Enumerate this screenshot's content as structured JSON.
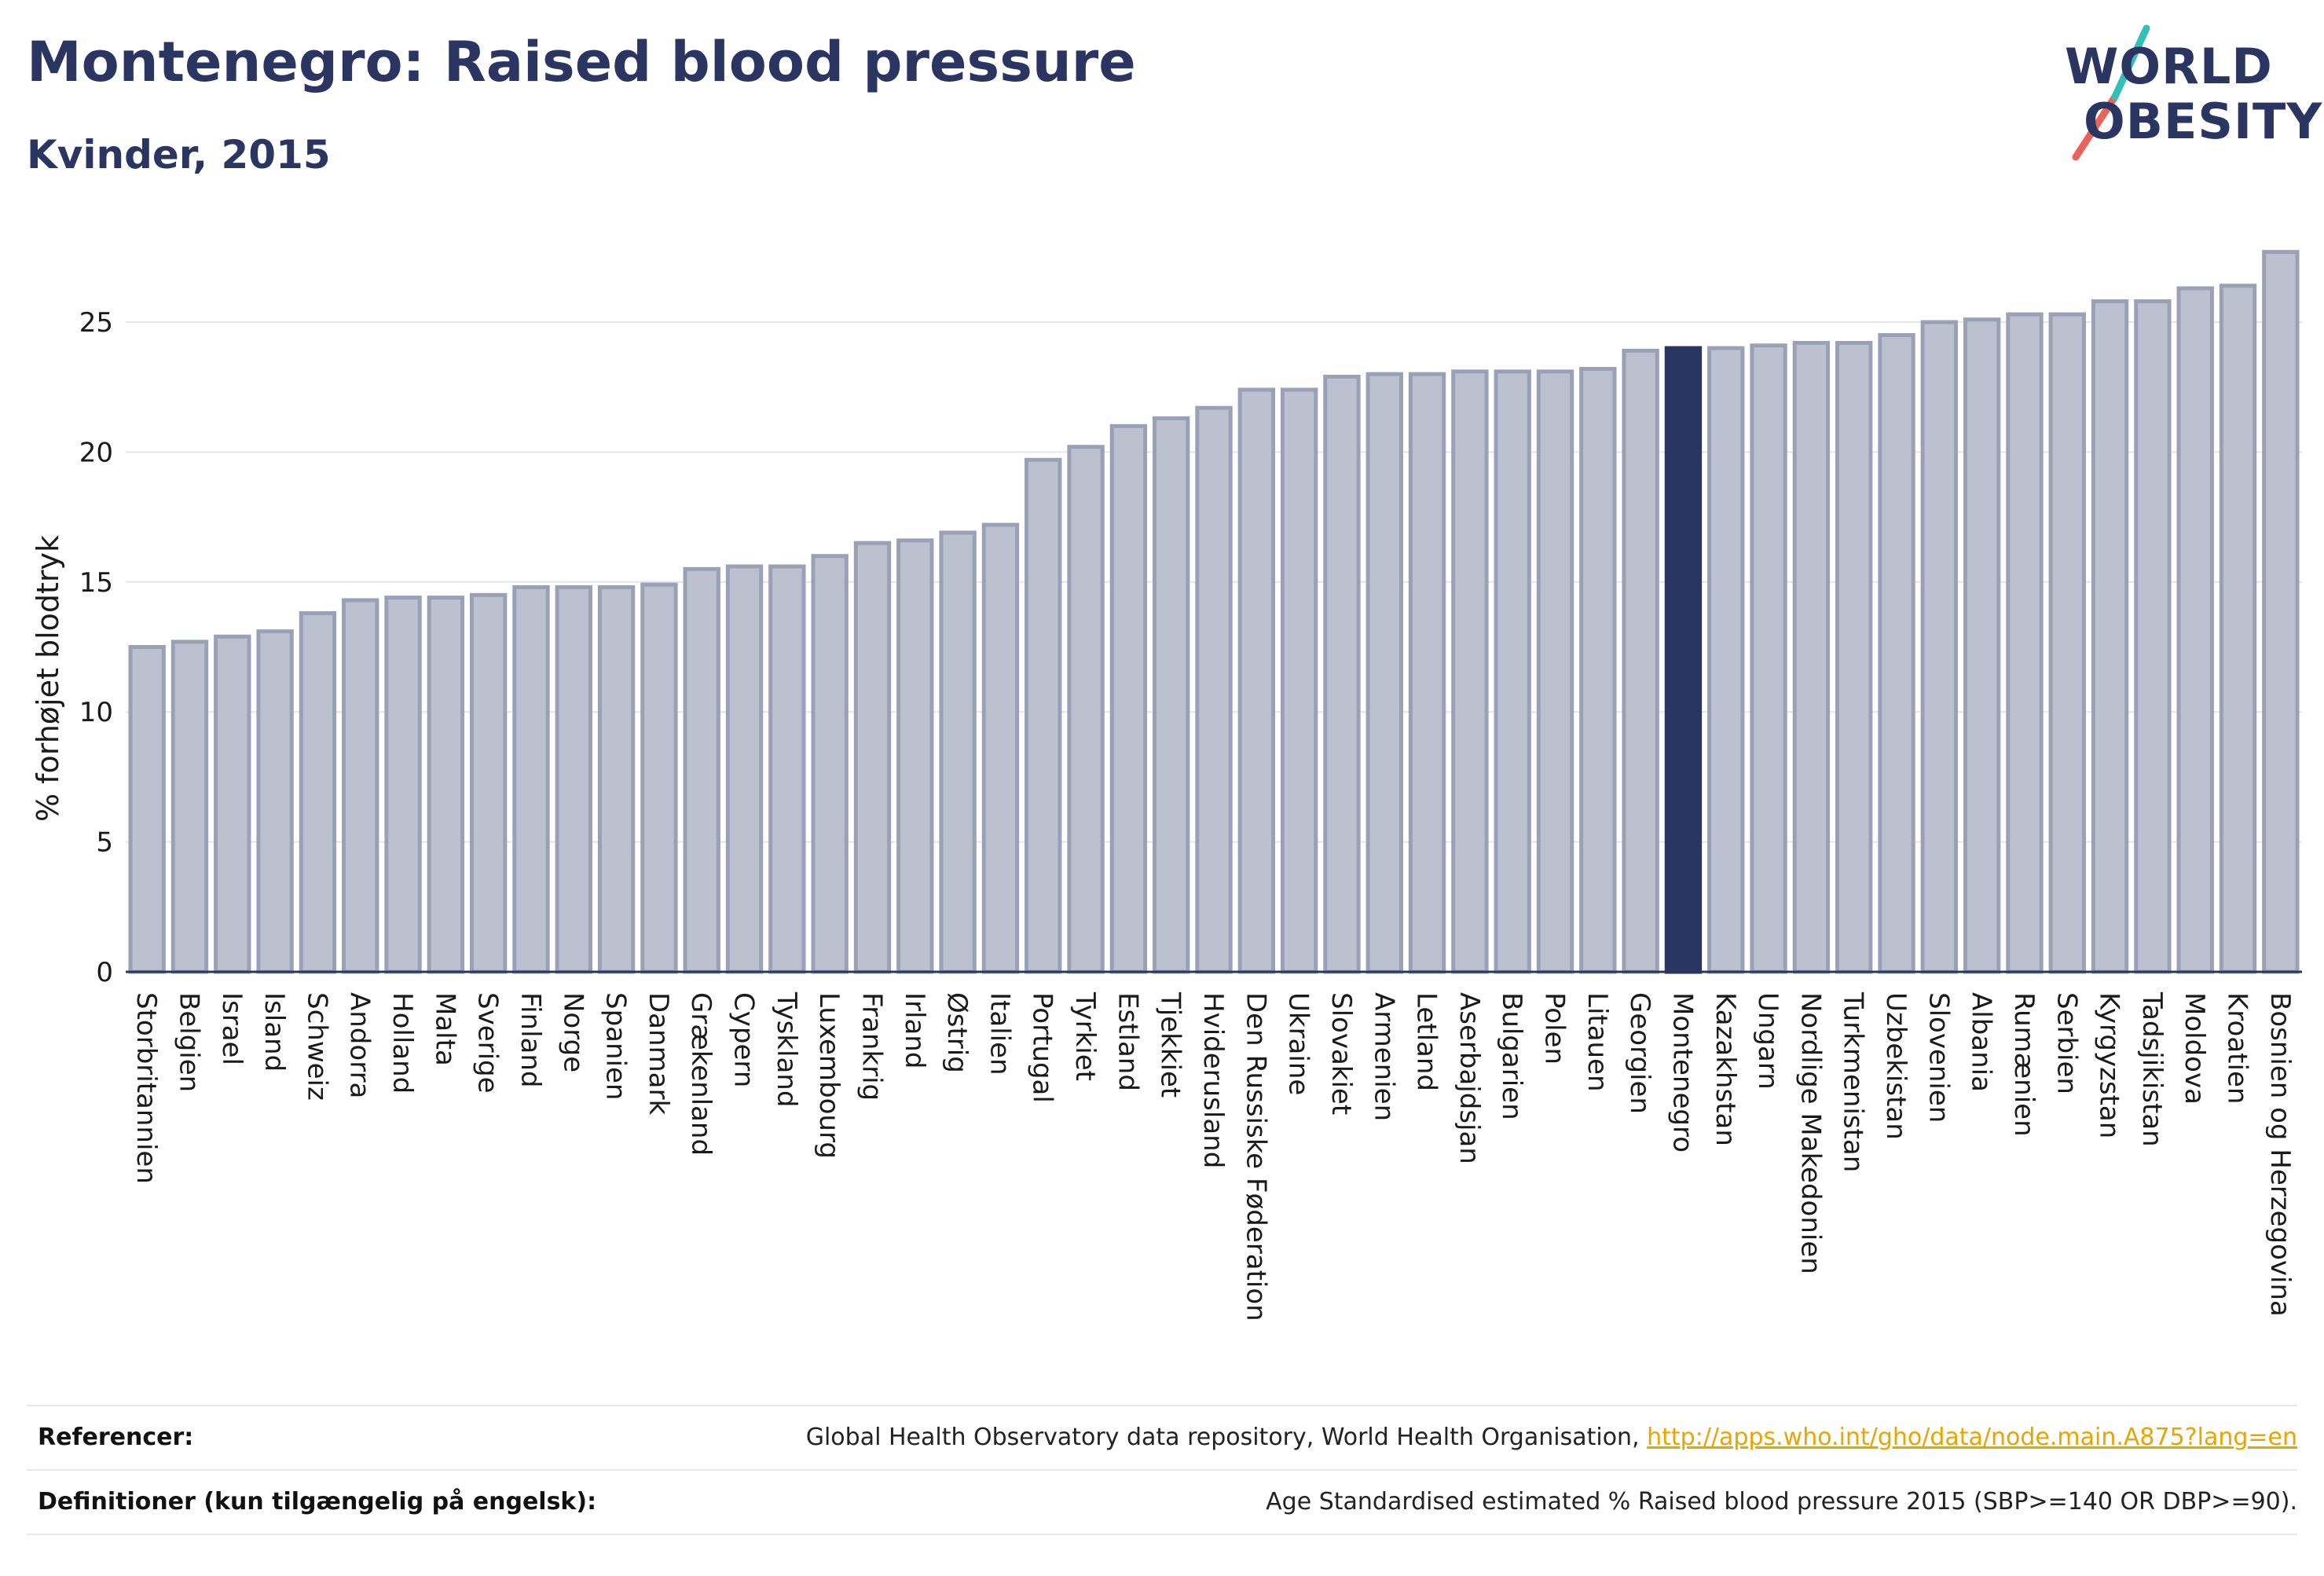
{
  "header": {
    "title": "Montenegro: Raised blood pressure",
    "subtitle": "Kvinder, 2015"
  },
  "logo": {
    "line1": "WORLD",
    "line2": "OBESITY",
    "slash_colors": [
      "#e8635a",
      "#33c0b6"
    ]
  },
  "colors": {
    "bar_default": "#bcc1cf",
    "bar_default_stroke": "#9aa1b6",
    "bar_highlight": "#2b3561",
    "grid": "#e4e6ed",
    "axis": "#2b3561",
    "text": "#1a1a1a"
  },
  "chart_data": {
    "type": "bar",
    "ylabel": "% forhøjet blodtryk",
    "ylim": [
      0,
      28
    ],
    "yticks": [
      0,
      5,
      10,
      15,
      20,
      25
    ],
    "grid": true,
    "highlight": "Montenegro",
    "categories": [
      "Storbritannien",
      "Belgien",
      "Israel",
      "Island",
      "Schweiz",
      "Andorra",
      "Holland",
      "Malta",
      "Sverige",
      "Finland",
      "Norge",
      "Spanien",
      "Danmark",
      "Grækenland",
      "Cypern",
      "Tyskland",
      "Luxembourg",
      "Frankrig",
      "Irland",
      "Østrig",
      "Italien",
      "Portugal",
      "Tyrkiet",
      "Estland",
      "Tjekkiet",
      "Hviderusland",
      "Den Russiske Føderation",
      "Ukraine",
      "Slovakiet",
      "Armenien",
      "Letland",
      "Aserbajdsjan",
      "Bulgarien",
      "Polen",
      "Litauen",
      "Georgien",
      "Montenegro",
      "Kazakhstan",
      "Ungarn",
      "Nordlige Makedonien",
      "Turkmenistan",
      "Uzbekistan",
      "Slovenien",
      "Albania",
      "Rumænien",
      "Serbien",
      "Kyrgyzstan",
      "Tadsjikistan",
      "Moldova",
      "Kroatien",
      "Bosnien og Herzegovina"
    ],
    "values": [
      12.5,
      12.7,
      12.9,
      13.1,
      13.8,
      14.3,
      14.4,
      14.4,
      14.5,
      14.8,
      14.8,
      14.8,
      14.9,
      15.5,
      15.6,
      15.6,
      16.0,
      16.5,
      16.6,
      16.9,
      17.2,
      19.7,
      20.2,
      21.0,
      21.3,
      21.7,
      22.4,
      22.4,
      22.9,
      23.0,
      23.0,
      23.1,
      23.1,
      23.1,
      23.2,
      23.9,
      24.0,
      24.0,
      24.1,
      24.2,
      24.2,
      24.5,
      25.0,
      25.1,
      25.3,
      25.3,
      25.8,
      25.8,
      26.3,
      26.4,
      27.7
    ]
  },
  "footer": {
    "references_label": "Referencer:",
    "references_text": "Global Health Observatory data repository, World Health Organisation, ",
    "references_link": "http://apps.who.int/gho/data/node.main.A875?lang=en",
    "definitions_label": "Definitioner (kun tilgængelig på engelsk):",
    "definitions_text": "Age Standardised estimated % Raised blood pressure 2015 (SBP>=140 OR DBP>=90)."
  }
}
